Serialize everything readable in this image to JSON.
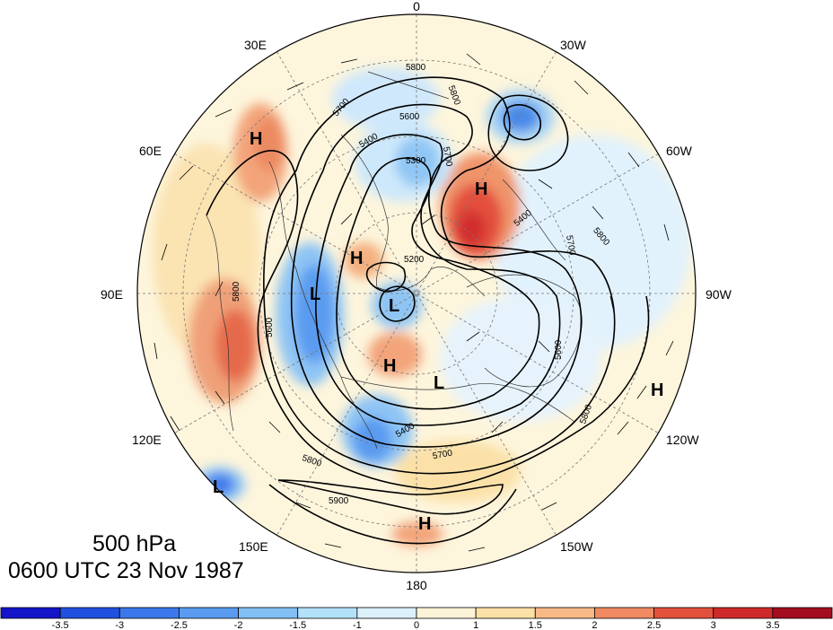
{
  "title": {
    "level": "500 hPa",
    "valid_time": "0600 UTC 23 Nov 1987"
  },
  "projection": "polar-stereographic-north",
  "longitude_labels": {
    "top": "0",
    "top_right": "30W",
    "right_upper": "60W",
    "right": "90W",
    "right_lower": "120W",
    "bottom_right": "150W",
    "bottom": "180",
    "bottom_left": "150E",
    "left_lower": "120E",
    "left": "90E",
    "left_upper": "60E",
    "top_left": "30E"
  },
  "contour_labels": [
    "5800",
    "5800",
    "5700",
    "5600",
    "5400",
    "5300",
    "5700",
    "5200",
    "5400",
    "5700",
    "5800",
    "5600",
    "5800",
    "5600",
    "5800",
    "5400",
    "5700",
    "5900",
    "5800"
  ],
  "pressure_centers": [
    {
      "type": "H",
      "label": "H"
    },
    {
      "type": "H",
      "label": "H"
    },
    {
      "type": "H",
      "label": "H"
    },
    {
      "type": "L",
      "label": "L"
    },
    {
      "type": "L",
      "label": "L"
    },
    {
      "type": "H",
      "label": "H"
    },
    {
      "type": "L",
      "label": "L"
    },
    {
      "type": "H",
      "label": "H"
    },
    {
      "type": "L",
      "label": "L"
    },
    {
      "type": "H",
      "label": "H"
    }
  ],
  "colorbar": {
    "tick_labels": [
      "-3.5",
      "-3",
      "-2.5",
      "-2",
      "-1.5",
      "-1",
      "0",
      "1",
      "1.5",
      "2",
      "2.5",
      "3",
      "3.5"
    ],
    "colors": [
      "#1414c8",
      "#2050e0",
      "#3c78eb",
      "#5a9bf0",
      "#82bff5",
      "#b4e1fa",
      "#dcf0fc",
      "#fdf4d8",
      "#fbe1a8",
      "#f7b985",
      "#ef8a62",
      "#e3503c",
      "#cf2a2a",
      "#a30d1e"
    ]
  }
}
